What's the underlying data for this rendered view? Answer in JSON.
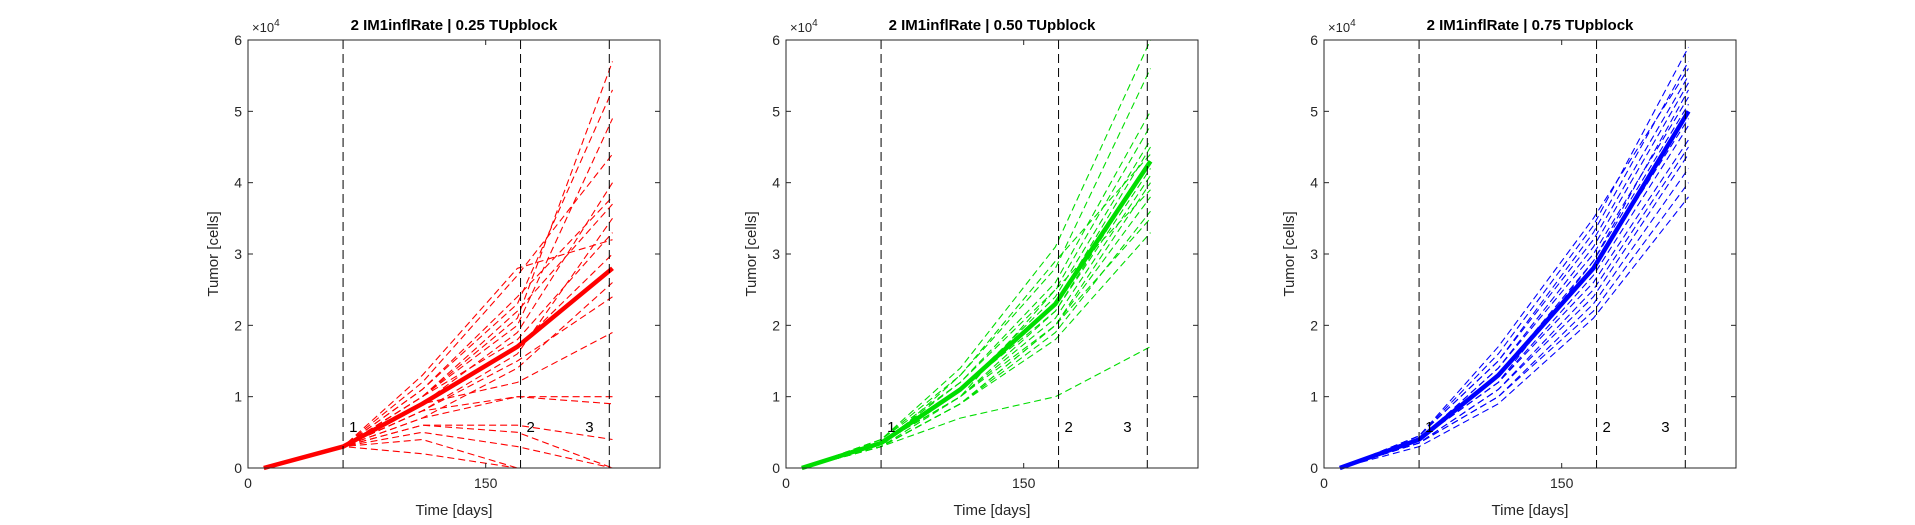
{
  "figure": {
    "panel_color_hex": [
      "#ff0000",
      "#00dd00",
      "#0000ff"
    ]
  },
  "chart_data": [
    {
      "type": "line",
      "title": "2 IM1inflRate | 0.25 TUpblock",
      "xlabel": "Time [days]",
      "ylabel": "Tumor [cells]",
      "y_exponent_label": "×10",
      "y_exponent_power": "4",
      "xlim": [
        0,
        260
      ],
      "ylim": [
        0,
        6
      ],
      "y_scale_factor": 10000,
      "x_ticks": [
        0,
        150
      ],
      "x_tick_labels": [
        "0",
        "150"
      ],
      "y_ticks": [
        0,
        1,
        2,
        3,
        4,
        5,
        6
      ],
      "y_tick_labels": [
        "0",
        "1",
        "2",
        "3",
        "4",
        "5",
        "6"
      ],
      "grid": false,
      "color": "#ff0000",
      "series_style": "mean solid thick, individual runs dashed thin",
      "x": [
        10,
        60,
        110,
        170,
        230
      ],
      "mean_series": [
        0,
        0.3,
        0.9,
        1.7,
        2.8
      ],
      "runs_series": [
        [
          0,
          0.3,
          1.0,
          2.1,
          5.7
        ],
        [
          0,
          0.3,
          1.1,
          2.3,
          5.3
        ],
        [
          0,
          0.3,
          1.0,
          2.0,
          4.9
        ],
        [
          0,
          0.3,
          1.2,
          2.7,
          4.4
        ],
        [
          0,
          0.3,
          0.9,
          1.9,
          4.0
        ],
        [
          0,
          0.3,
          1.0,
          2.2,
          3.7
        ],
        [
          0,
          0.3,
          0.8,
          1.6,
          3.5
        ],
        [
          0,
          0.3,
          1.3,
          2.8,
          3.2
        ],
        [
          0,
          0.3,
          0.9,
          1.7,
          3.0
        ],
        [
          0,
          0.3,
          0.7,
          1.4,
          2.6
        ],
        [
          0,
          0.3,
          1.1,
          2.4,
          3.8
        ],
        [
          0,
          0.3,
          0.8,
          1.5,
          2.4
        ],
        [
          0,
          0.3,
          1.0,
          1.8,
          3.3
        ],
        [
          0,
          0.3,
          0.9,
          1.2,
          1.9
        ],
        [
          0,
          0.3,
          0.7,
          1.0,
          1.0
        ],
        [
          0,
          0.3,
          0.8,
          1.0,
          0.9
        ],
        [
          0,
          0.3,
          0.6,
          0.6,
          0.4
        ],
        [
          0,
          0.3,
          0.6,
          0.5,
          0.0
        ],
        [
          0,
          0.3,
          0.5,
          0.3,
          0.0
        ],
        [
          0,
          0.3,
          0.4,
          0.0,
          0.0
        ],
        [
          0,
          0.3,
          0.2,
          0.0,
          0.0
        ]
      ],
      "vlines": [
        {
          "x": 60,
          "label": "1"
        },
        {
          "x": 172,
          "label": "2"
        },
        {
          "x": 228,
          "label": "3"
        }
      ]
    },
    {
      "type": "line",
      "title": "2 IM1inflRate | 0.50 TUpblock",
      "xlabel": "Time [days]",
      "ylabel": "Tumor [cells]",
      "y_exponent_label": "×10",
      "y_exponent_power": "4",
      "xlim": [
        0,
        260
      ],
      "ylim": [
        0,
        6
      ],
      "y_scale_factor": 10000,
      "x_ticks": [
        0,
        150
      ],
      "x_tick_labels": [
        "0",
        "150"
      ],
      "y_ticks": [
        0,
        1,
        2,
        3,
        4,
        5,
        6
      ],
      "y_tick_labels": [
        "0",
        "1",
        "2",
        "3",
        "4",
        "5",
        "6"
      ],
      "grid": false,
      "color": "#00dd00",
      "series_style": "mean solid thick, individual runs dashed thin",
      "x": [
        10,
        60,
        110,
        170,
        230
      ],
      "mean_series": [
        0,
        0.35,
        1.1,
        2.3,
        4.3
      ],
      "runs_series": [
        [
          0,
          0.4,
          1.4,
          3.1,
          6.0
        ],
        [
          0,
          0.4,
          1.3,
          2.8,
          5.6
        ],
        [
          0,
          0.4,
          1.2,
          2.6,
          5.0
        ],
        [
          0,
          0.35,
          1.2,
          2.5,
          4.8
        ],
        [
          0,
          0.35,
          1.1,
          2.4,
          4.6
        ],
        [
          0,
          0.35,
          1.1,
          2.3,
          4.5
        ],
        [
          0,
          0.35,
          1.1,
          2.2,
          4.3
        ],
        [
          0,
          0.35,
          1.0,
          2.2,
          4.2
        ],
        [
          0,
          0.35,
          1.0,
          2.1,
          4.1
        ],
        [
          0,
          0.3,
          1.0,
          2.0,
          4.0
        ],
        [
          0,
          0.3,
          0.9,
          2.0,
          3.8
        ],
        [
          0,
          0.3,
          0.9,
          1.9,
          3.6
        ],
        [
          0,
          0.3,
          0.9,
          1.8,
          3.3
        ],
        [
          0,
          0.3,
          1.3,
          2.9,
          4.4
        ],
        [
          0,
          0.35,
          1.0,
          2.5,
          3.9
        ],
        [
          0,
          0.3,
          0.9,
          2.0,
          3.5
        ],
        [
          0,
          0.3,
          0.7,
          1.0,
          1.7
        ]
      ],
      "vlines": [
        {
          "x": 60,
          "label": "1"
        },
        {
          "x": 172,
          "label": "2"
        },
        {
          "x": 228,
          "label": "3"
        }
      ]
    },
    {
      "type": "line",
      "title": "2 IM1inflRate | 0.75 TUpblock",
      "xlabel": "Time [days]",
      "ylabel": "Tumor [cells]",
      "y_exponent_label": "×10",
      "y_exponent_power": "4",
      "xlim": [
        0,
        260
      ],
      "ylim": [
        0,
        6
      ],
      "y_scale_factor": 10000,
      "x_ticks": [
        0,
        150
      ],
      "x_tick_labels": [
        "0",
        "150"
      ],
      "y_ticks": [
        0,
        1,
        2,
        3,
        4,
        5,
        6
      ],
      "y_tick_labels": [
        "0",
        "1",
        "2",
        "3",
        "4",
        "5",
        "6"
      ],
      "grid": false,
      "color": "#0000ff",
      "series_style": "mean solid thick, individual runs dashed thin",
      "x": [
        10,
        60,
        110,
        170,
        230
      ],
      "mean_series": [
        0,
        0.4,
        1.3,
        2.8,
        5.0
      ],
      "runs_series": [
        [
          0,
          0.45,
          1.6,
          3.4,
          5.9
        ],
        [
          0,
          0.45,
          1.5,
          3.3,
          5.7
        ],
        [
          0,
          0.45,
          1.5,
          3.2,
          5.5
        ],
        [
          0,
          0.4,
          1.4,
          3.1,
          5.4
        ],
        [
          0,
          0.4,
          1.4,
          3.0,
          5.2
        ],
        [
          0,
          0.4,
          1.3,
          2.9,
          5.1
        ],
        [
          0,
          0.4,
          1.3,
          2.8,
          4.9
        ],
        [
          0,
          0.4,
          1.2,
          2.7,
          4.8
        ],
        [
          0,
          0.4,
          1.2,
          2.6,
          4.6
        ],
        [
          0,
          0.35,
          1.1,
          2.5,
          4.5
        ],
        [
          0,
          0.35,
          1.1,
          2.4,
          4.4
        ],
        [
          0,
          0.35,
          1.0,
          2.3,
          4.2
        ],
        [
          0,
          0.35,
          1.0,
          2.2,
          4.0
        ],
        [
          0,
          0.3,
          0.9,
          2.1,
          3.8
        ],
        [
          0,
          0.45,
          1.7,
          3.5,
          5.6
        ],
        [
          0,
          0.4,
          1.2,
          2.9,
          5.3
        ]
      ],
      "vlines": [
        {
          "x": 60,
          "label": "1"
        },
        {
          "x": 172,
          "label": "2"
        },
        {
          "x": 228,
          "label": "3"
        }
      ]
    }
  ]
}
